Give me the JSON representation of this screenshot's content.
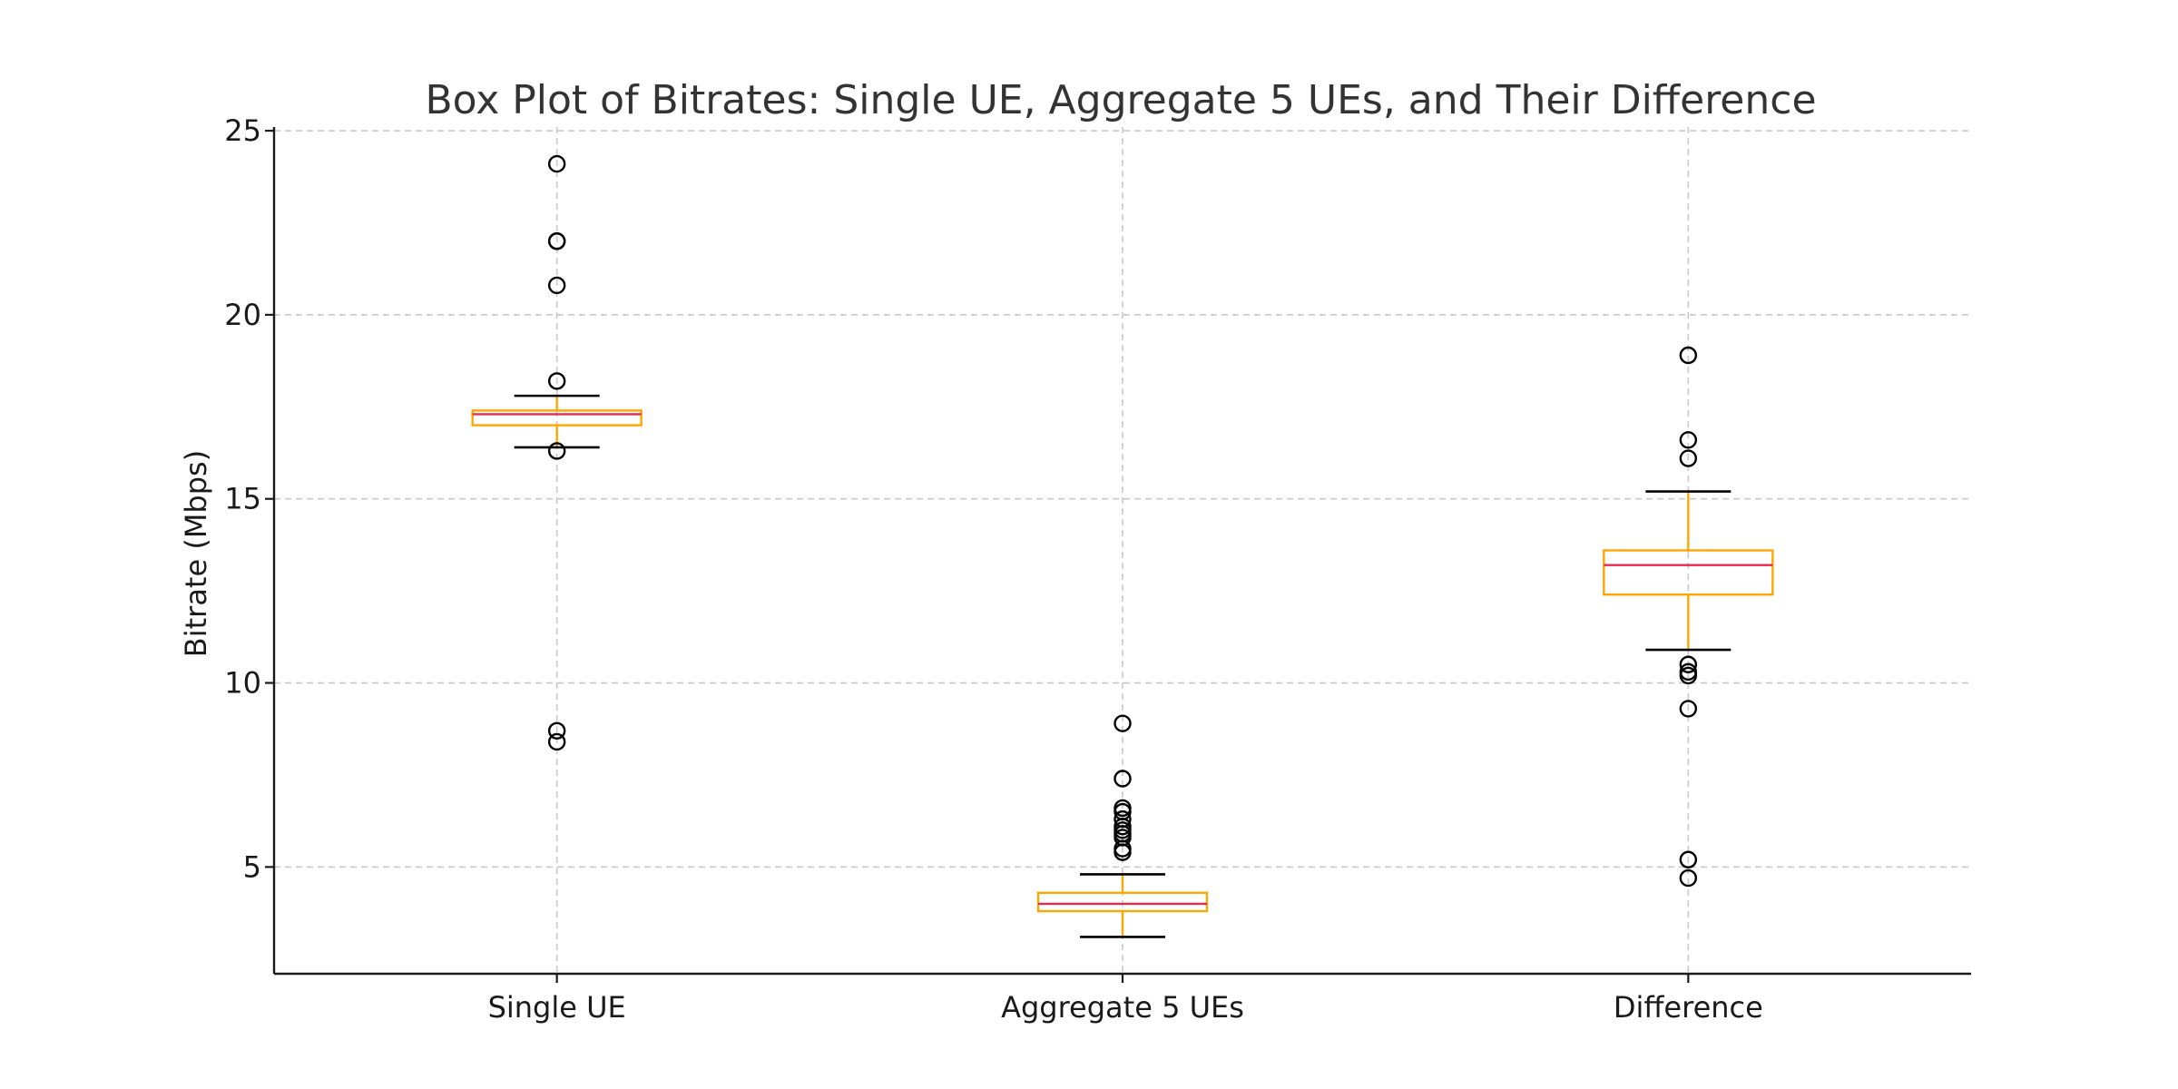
{
  "chart_data": {
    "type": "box",
    "title": "Box Plot of Bitrates: Single UE, Aggregate 5 UEs, and Their Difference",
    "xlabel": "",
    "ylabel": "Bitrate (Mbps)",
    "ylim": [
      2.1,
      25.1
    ],
    "yticks": [
      5,
      10,
      15,
      20,
      25
    ],
    "grid": true,
    "colors": {
      "box": "#FFA500",
      "median": "#E8294E",
      "whisker_cap": "#000000",
      "outlier": "#000000",
      "grid": "#c8c8c8"
    },
    "categories": [
      "Single UE",
      "Aggregate 5 UEs",
      "Difference"
    ],
    "boxes": [
      {
        "category": "Single UE",
        "whisker_low": 16.4,
        "q1": 17.0,
        "median": 17.3,
        "q3": 17.4,
        "whisker_high": 17.8,
        "outliers": [
          24.1,
          22.0,
          22.0,
          20.8,
          18.2,
          16.3,
          8.7,
          8.4
        ]
      },
      {
        "category": "Aggregate 5 UEs",
        "whisker_low": 3.1,
        "q1": 3.8,
        "median": 4.0,
        "q3": 4.3,
        "whisker_high": 4.8,
        "outliers": [
          8.9,
          7.4,
          6.6,
          6.5,
          6.3,
          6.1,
          6.0,
          5.9,
          5.8,
          5.5,
          5.4
        ]
      },
      {
        "category": "Difference",
        "whisker_low": 10.9,
        "q1": 12.4,
        "median": 13.2,
        "q3": 13.6,
        "whisker_high": 15.2,
        "outliers": [
          18.9,
          16.6,
          16.1,
          10.5,
          10.3,
          10.2,
          9.3,
          5.2,
          4.7
        ]
      }
    ]
  }
}
